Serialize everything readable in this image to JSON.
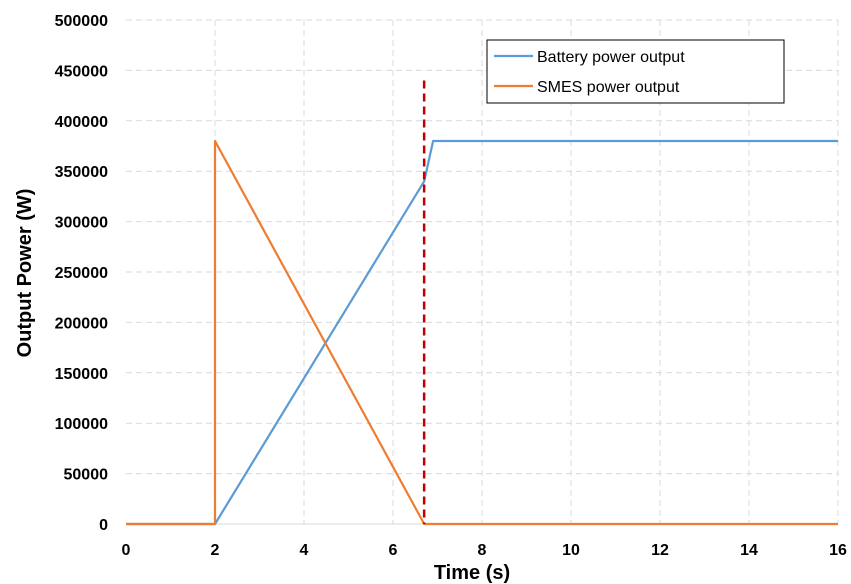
{
  "chart_data": {
    "type": "line",
    "xlabel": "Time (s)",
    "ylabel": "Output Power (W)",
    "xlim": [
      0,
      16
    ],
    "ylim": [
      0,
      500000
    ],
    "x_ticks": [
      0,
      2,
      4,
      6,
      8,
      10,
      12,
      14,
      16
    ],
    "y_ticks": [
      0,
      50000,
      100000,
      150000,
      200000,
      250000,
      300000,
      350000,
      400000,
      450000,
      500000
    ],
    "grid": true,
    "legend_position": "top-right",
    "series": [
      {
        "name": "Battery power output",
        "color": "#5b9bd5",
        "points": [
          [
            0,
            0
          ],
          [
            2,
            0
          ],
          [
            6.7,
            340000
          ],
          [
            6.9,
            380000
          ],
          [
            16,
            380000
          ]
        ]
      },
      {
        "name": "SMES power output",
        "color": "#ed7d31",
        "points": [
          [
            0,
            0
          ],
          [
            2,
            0
          ],
          [
            2,
            380000
          ],
          [
            6.7,
            0
          ],
          [
            16,
            0
          ]
        ]
      }
    ],
    "annotations": [
      {
        "type": "vertical-dashed-line",
        "x": 6.7,
        "y_range": [
          0,
          440000
        ],
        "color": "#c00000"
      }
    ]
  }
}
